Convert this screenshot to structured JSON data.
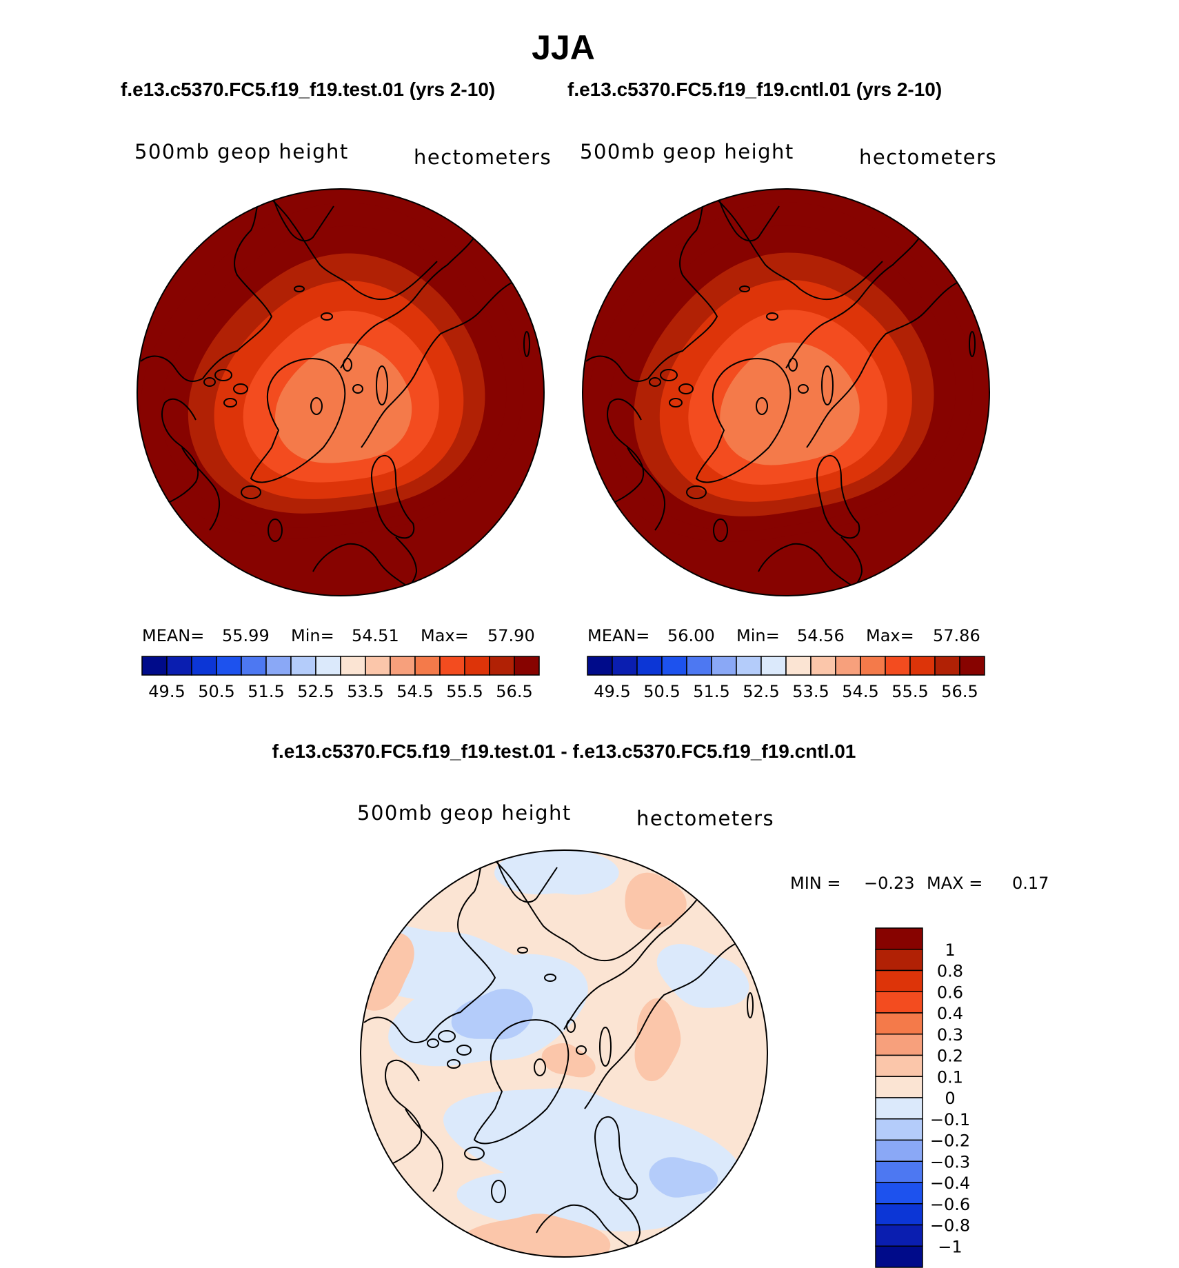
{
  "header": {
    "title": "JJA",
    "subtitle_left": "f.e13.c5370.FC5.f19_f19.test.01 (yrs 2-10)",
    "subtitle_right": "f.e13.c5370.FC5.f19_f19.cntl.01 (yrs 2-10)",
    "diff_title": "f.e13.c5370.FC5.f19_f19.test.01 - f.e13.c5370.FC5.f19_f19.cntl.01"
  },
  "chart_data": [
    {
      "type": "polar-contour-map",
      "variable": "500mb geop height",
      "units": "hectometers",
      "stats": {
        "mean_label": "MEAN=",
        "mean": "55.99",
        "min_label": "Min=",
        "min": "54.51",
        "max_label": "Max=",
        "max": "57.90"
      },
      "colorbar": {
        "levels": [
          49.5,
          50,
          50.5,
          51,
          51.5,
          52,
          52.5,
          53,
          53.5,
          54,
          54.5,
          55,
          55.5,
          56,
          56.5
        ],
        "tick_labels": [
          "49.5",
          "50.5",
          "51.5",
          "52.5",
          "53.5",
          "54.5",
          "55.5",
          "56.5"
        ],
        "colors": [
          "#000b8a",
          "#0a1eb0",
          "#0c36d6",
          "#1d52ee",
          "#4d78f2",
          "#8aa8f6",
          "#b4ccfa",
          "#dbe9fb",
          "#fbe4d3",
          "#fbc6aa",
          "#f7a07c",
          "#f47a4a",
          "#f34c1f",
          "#dd3409",
          "#b12105",
          "#870300"
        ]
      },
      "contours": {
        "shown_levels": [
          55,
          55.5,
          56,
          56.5,
          57,
          57.5
        ],
        "polar_min": 54.51,
        "outer_max": 57.9
      }
    },
    {
      "type": "polar-contour-map",
      "variable": "500mb geop height",
      "units": "hectometers",
      "stats": {
        "mean_label": "MEAN=",
        "mean": "56.00",
        "min_label": "Min=",
        "min": "54.56",
        "max_label": "Max=",
        "max": "57.86"
      },
      "colorbar": {
        "levels": [
          49.5,
          50,
          50.5,
          51,
          51.5,
          52,
          52.5,
          53,
          53.5,
          54,
          54.5,
          55,
          55.5,
          56,
          56.5
        ],
        "tick_labels": [
          "49.5",
          "50.5",
          "51.5",
          "52.5",
          "53.5",
          "54.5",
          "55.5",
          "56.5"
        ],
        "colors": [
          "#000b8a",
          "#0a1eb0",
          "#0c36d6",
          "#1d52ee",
          "#4d78f2",
          "#8aa8f6",
          "#b4ccfa",
          "#dbe9fb",
          "#fbe4d3",
          "#fbc6aa",
          "#f7a07c",
          "#f47a4a",
          "#f34c1f",
          "#dd3409",
          "#b12105",
          "#870300"
        ]
      },
      "contours": {
        "shown_levels": [
          55,
          55.5,
          56,
          56.5,
          57,
          57.5
        ],
        "polar_min": 54.56,
        "outer_max": 57.86
      }
    },
    {
      "type": "polar-contour-map",
      "variable": "500mb geop height",
      "units": "hectometers",
      "stats": {
        "min_label": "MIN =",
        "min": "−0.23",
        "max_label": "MAX =",
        "max": "0.17"
      },
      "colorbar": {
        "levels": [
          -1,
          -0.8,
          -0.6,
          -0.4,
          -0.3,
          -0.2,
          -0.1,
          0,
          0.1,
          0.2,
          0.3,
          0.4,
          0.6,
          0.8,
          1
        ],
        "tick_labels": [
          "1",
          "0.8",
          "0.6",
          "0.4",
          "0.3",
          "0.2",
          "0.1",
          "0",
          "−0.1",
          "−0.2",
          "−0.3",
          "−0.4",
          "−0.6",
          "−0.8",
          "−1"
        ],
        "colors": [
          "#870300",
          "#b12105",
          "#dd3409",
          "#f34c1f",
          "#f47a4a",
          "#f7a07c",
          "#fbc6aa",
          "#fbe4d3",
          "#dbe9fb",
          "#b4ccfa",
          "#8aa8f6",
          "#4d78f2",
          "#1d52ee",
          "#0c36d6",
          "#0a1eb0",
          "#000b8a"
        ]
      }
    }
  ]
}
